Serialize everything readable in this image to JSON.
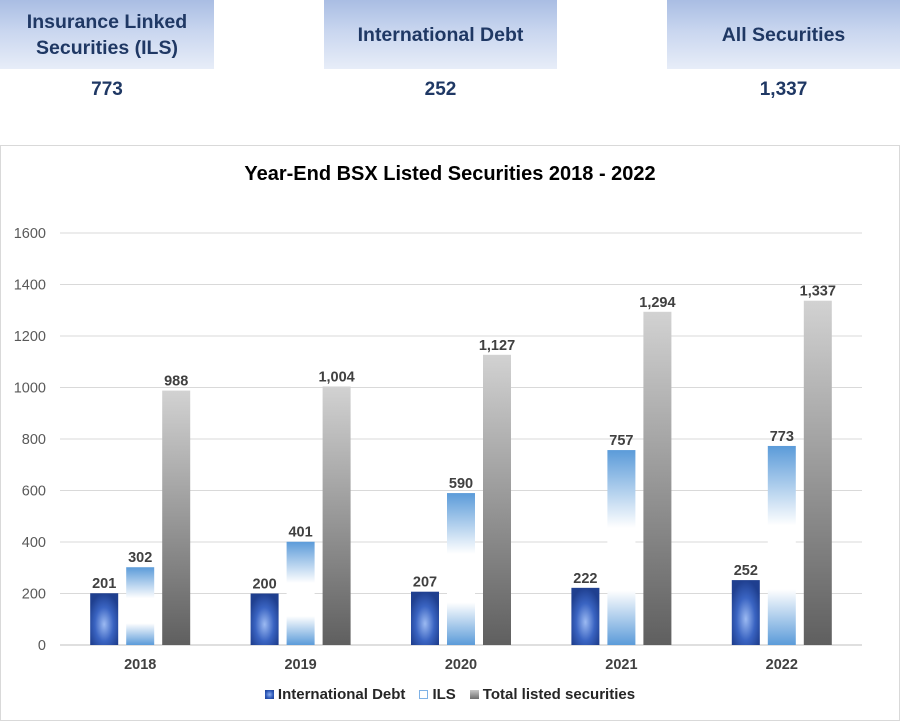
{
  "stats": [
    {
      "label_line1": "Insurance Linked",
      "label_line2": "Securities (ILS)",
      "value": "773"
    },
    {
      "label_line1": "International Debt",
      "label_line2": "",
      "value": "252"
    },
    {
      "label_line1": "All Securities",
      "label_line2": "",
      "value": "1,337"
    }
  ],
  "chart_data": {
    "type": "bar",
    "title": "Year-End BSX Listed Securities 2018 - 2022",
    "categories": [
      "2018",
      "2019",
      "2020",
      "2021",
      "2022"
    ],
    "series": [
      {
        "name": "International Debt",
        "values": [
          201,
          200,
          207,
          222,
          252
        ],
        "labels": [
          "201",
          "200",
          "207",
          "222",
          "252"
        ],
        "color": "#2c58b8"
      },
      {
        "name": "ILS",
        "values": [
          302,
          401,
          590,
          757,
          773
        ],
        "labels": [
          "302",
          "401",
          "590",
          "757",
          "773"
        ],
        "color": "#6fa8e0"
      },
      {
        "name": "Total listed securities",
        "values": [
          988,
          1004,
          1127,
          1294,
          1337
        ],
        "labels": [
          "988",
          "1,004",
          "1,127",
          "1,294",
          "1,337"
        ],
        "color": "#8c8c8c"
      }
    ],
    "ylim": [
      0,
      1600
    ],
    "yticks": [
      "0",
      "200",
      "400",
      "600",
      "800",
      "1000",
      "1200",
      "1400",
      "1600"
    ],
    "ytick_values": [
      0,
      200,
      400,
      600,
      800,
      1000,
      1200,
      1400,
      1600
    ],
    "gridlines": true,
    "legend_position": "bottom",
    "xlabel": "",
    "ylabel": ""
  }
}
